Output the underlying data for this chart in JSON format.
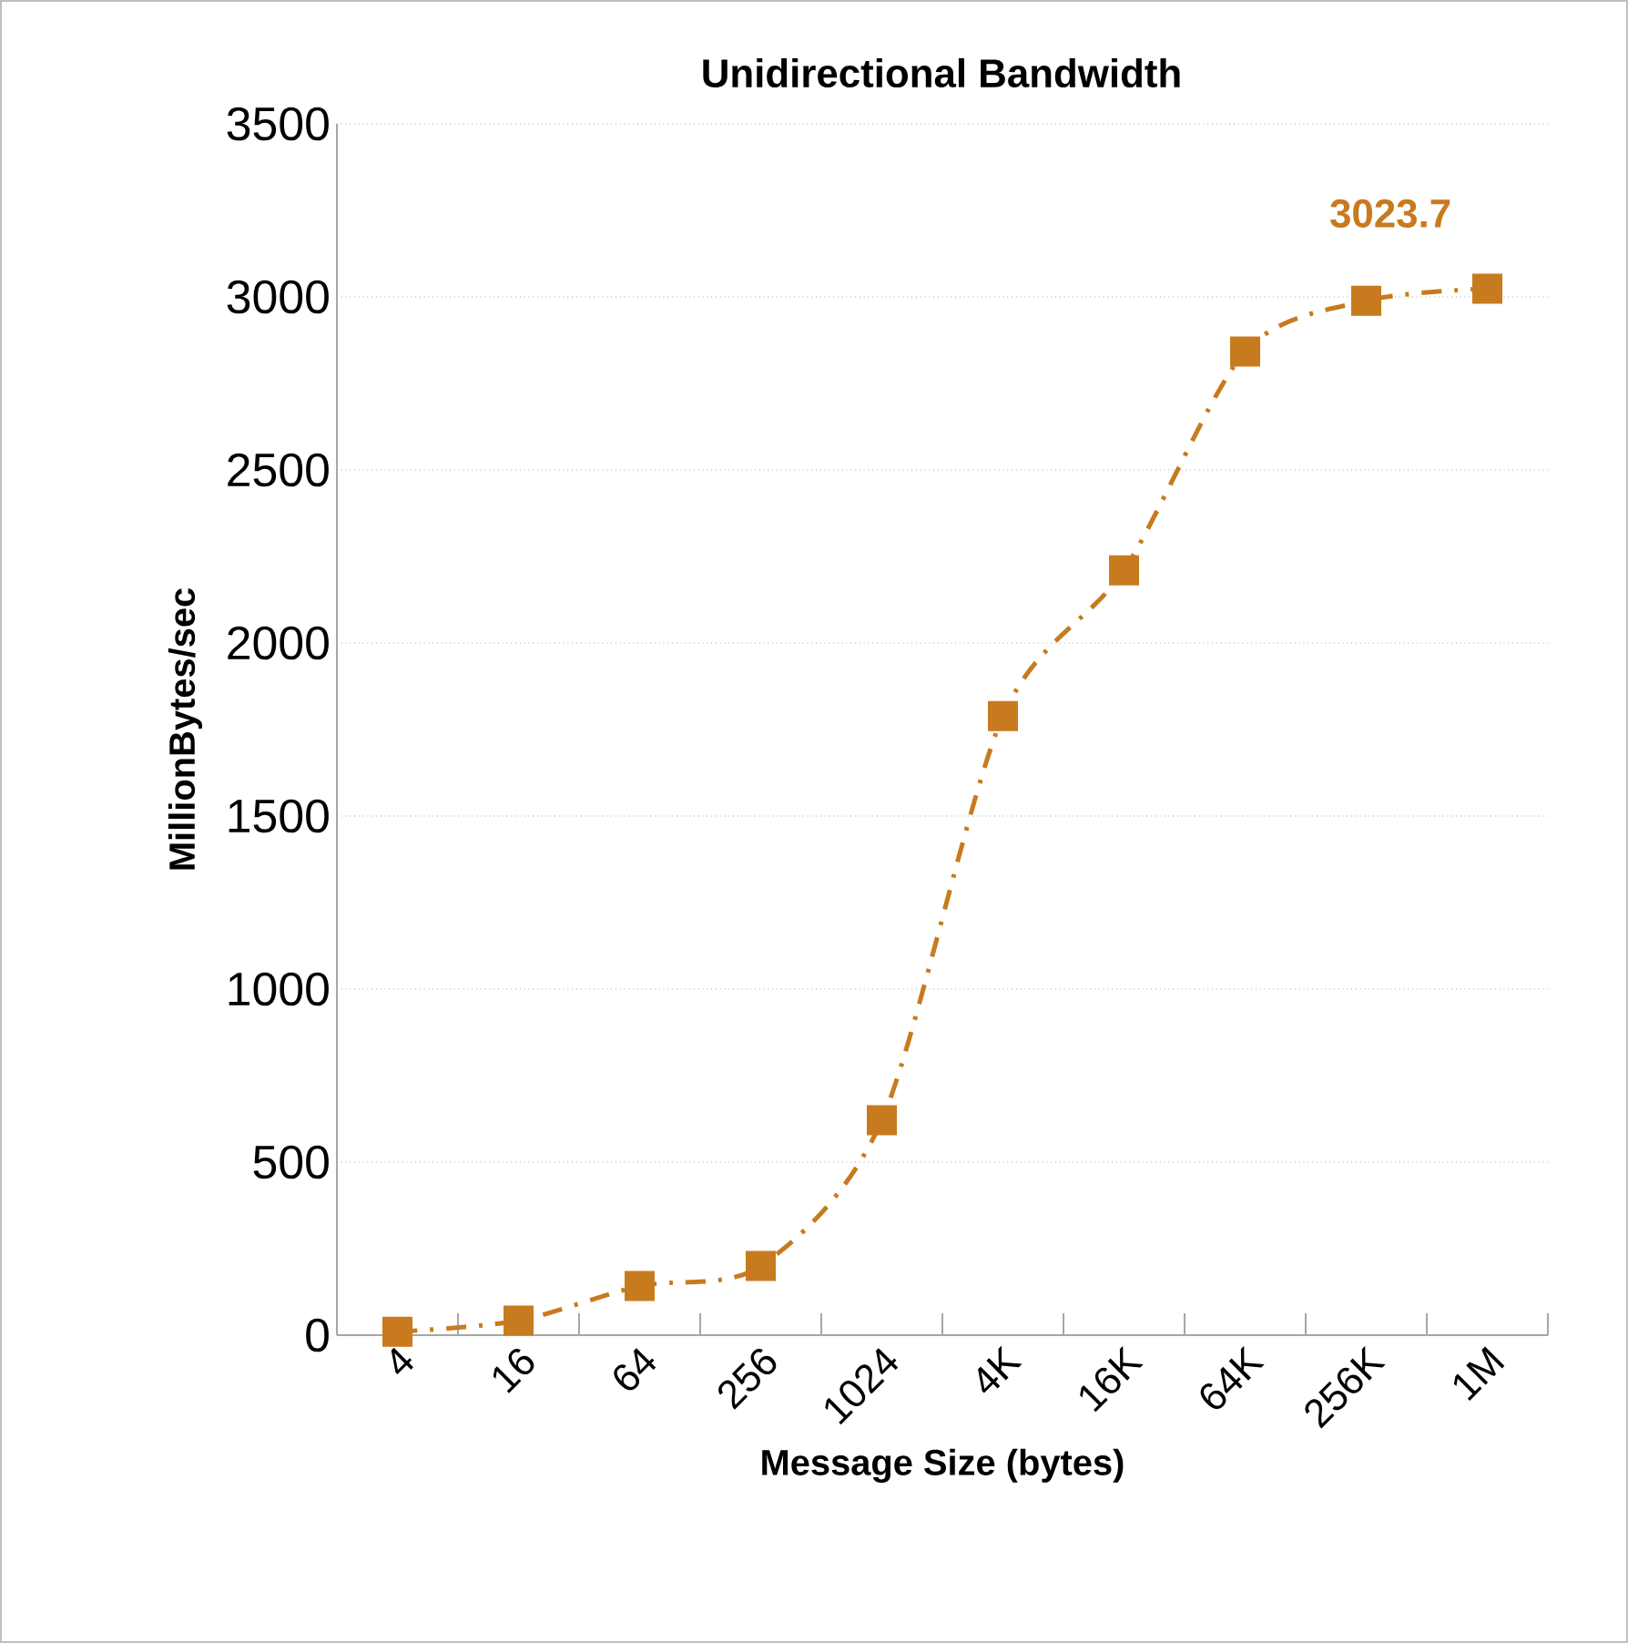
{
  "chart_data": {
    "type": "line",
    "title": "Unidirectional Bandwidth",
    "xlabel": "Message Size (bytes)",
    "ylabel": "MillionBytes/sec",
    "categories": [
      "4",
      "16",
      "64",
      "256",
      "1024",
      "4K",
      "16K",
      "64K",
      "256K",
      "1M"
    ],
    "values": [
      10,
      42,
      142,
      200,
      621,
      1789,
      2210,
      2842,
      2989,
      3023.7
    ],
    "value_labels": [
      null,
      null,
      null,
      null,
      null,
      null,
      null,
      null,
      null,
      "3023.7"
    ],
    "color": "#c87a1e",
    "marker": "square",
    "line_style": "dashed",
    "ylim": [
      0,
      3500
    ],
    "yticks": [
      0,
      500,
      1000,
      1500,
      2000,
      2500,
      3000,
      3500
    ],
    "grid": "y"
  }
}
